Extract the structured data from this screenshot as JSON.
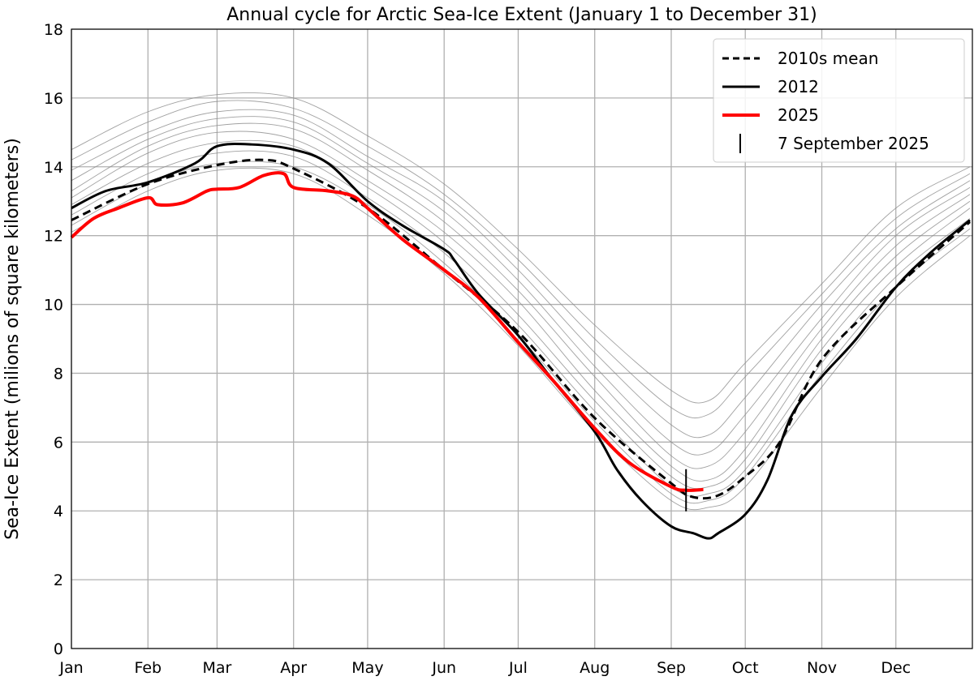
{
  "chart_data": {
    "type": "line",
    "title": "Annual cycle for Arctic Sea-Ice Extent (January 1 to December 31)",
    "xlabel": "",
    "ylabel": "Sea-Ice Extent (milions of square kilometers)",
    "xlim": [
      0,
      365
    ],
    "ylim": [
      0,
      18
    ],
    "yticks": [
      0,
      2,
      4,
      6,
      8,
      10,
      12,
      14,
      16,
      18
    ],
    "xticks": [
      {
        "day": 0,
        "label": "Jan"
      },
      {
        "day": 31,
        "label": "Feb"
      },
      {
        "day": 59,
        "label": "Mar"
      },
      {
        "day": 90,
        "label": "Apr"
      },
      {
        "day": 120,
        "label": "May"
      },
      {
        "day": 151,
        "label": "Jun"
      },
      {
        "day": 181,
        "label": "Jul"
      },
      {
        "day": 212,
        "label": "Aug"
      },
      {
        "day": 243,
        "label": "Sep"
      },
      {
        "day": 273,
        "label": "Oct"
      },
      {
        "day": 304,
        "label": "Nov"
      },
      {
        "day": 334,
        "label": "Dec"
      }
    ],
    "grid": true,
    "legend_position": "top-right",
    "historical_days": [
      0,
      31,
      59,
      90,
      120,
      151,
      181,
      212,
      243,
      258,
      273,
      304,
      334,
      364
    ],
    "historical_series": [
      [
        14.5,
        15.6,
        16.1,
        16.0,
        14.9,
        13.5,
        11.6,
        9.4,
        7.5,
        7.2,
        8.3,
        10.6,
        12.8,
        14.0
      ],
      [
        14.2,
        15.3,
        15.9,
        15.7,
        14.6,
        13.2,
        11.3,
        9.0,
        7.0,
        6.8,
        7.9,
        10.3,
        12.5,
        13.8
      ],
      [
        13.9,
        15.0,
        15.6,
        15.5,
        14.3,
        13.0,
        11.0,
        8.6,
        6.5,
        6.2,
        7.3,
        10.0,
        12.2,
        13.6
      ],
      [
        13.6,
        14.8,
        15.4,
        15.3,
        14.1,
        12.7,
        10.7,
        8.2,
        6.0,
        5.7,
        6.8,
        9.6,
        12.0,
        13.4
      ],
      [
        13.3,
        14.6,
        15.2,
        15.1,
        13.9,
        12.4,
        10.4,
        7.9,
        5.6,
        5.3,
        6.3,
        9.3,
        11.7,
        13.2
      ],
      [
        13.1,
        14.4,
        15.0,
        14.8,
        13.6,
        12.1,
        10.1,
        7.5,
        5.3,
        4.9,
        5.8,
        9.0,
        11.4,
        13.0
      ],
      [
        12.9,
        14.1,
        14.7,
        14.6,
        13.4,
        11.8,
        9.7,
        7.2,
        5.0,
        4.7,
        5.5,
        8.7,
        11.1,
        12.8
      ],
      [
        12.6,
        13.8,
        14.4,
        14.3,
        13.1,
        11.5,
        9.4,
        6.9,
        4.7,
        4.5,
        5.2,
        8.3,
        10.8,
        12.5
      ],
      [
        12.3,
        13.5,
        14.1,
        14.0,
        12.9,
        11.2,
        9.1,
        6.6,
        4.5,
        4.3,
        5.0,
        8.0,
        10.5,
        12.2
      ],
      [
        12.1,
        13.3,
        13.9,
        13.8,
        12.6,
        10.9,
        8.8,
        6.3,
        4.3,
        4.1,
        4.7,
        7.6,
        10.2,
        12.0
      ]
    ],
    "series": [
      {
        "name": "2010s mean",
        "color": "#000000",
        "style": "dashed",
        "x": [
          0,
          31,
          59,
          78,
          90,
          120,
          151,
          181,
          212,
          243,
          252,
          262,
          273,
          287,
          304,
          334,
          364
        ],
        "y": [
          12.45,
          13.5,
          14.05,
          14.2,
          13.95,
          12.8,
          11.0,
          9.2,
          6.7,
          4.8,
          4.4,
          4.45,
          5.0,
          6.0,
          8.4,
          10.5,
          12.4
        ]
      },
      {
        "name": "2012",
        "color": "#000000",
        "style": "solid",
        "x": [
          0,
          14,
          31,
          50,
          59,
          73,
          90,
          104,
          120,
          134,
          151,
          155,
          165,
          181,
          195,
          212,
          221,
          231,
          243,
          252,
          258,
          262,
          273,
          282,
          292,
          304,
          318,
          334,
          348,
          364
        ],
        "y": [
          12.8,
          13.3,
          13.55,
          14.1,
          14.6,
          14.65,
          14.5,
          14.1,
          13.0,
          12.3,
          11.6,
          11.3,
          10.3,
          9.1,
          7.8,
          6.3,
          5.2,
          4.3,
          3.55,
          3.35,
          3.2,
          3.35,
          3.9,
          4.9,
          6.8,
          7.9,
          9.0,
          10.5,
          11.5,
          12.45
        ]
      },
      {
        "name": "2025",
        "color": "#ff0000",
        "style": "solid",
        "x": [
          0,
          9,
          19,
          31,
          35,
          45,
          55,
          59,
          68,
          78,
          86,
          90,
          104,
          114,
          120,
          134,
          151,
          165,
          181,
          195,
          212,
          226,
          243,
          249,
          256
        ],
        "y": [
          11.95,
          12.5,
          12.8,
          13.1,
          12.9,
          12.95,
          13.3,
          13.35,
          13.4,
          13.75,
          13.8,
          13.4,
          13.3,
          13.15,
          12.8,
          11.9,
          11.0,
          10.2,
          8.9,
          7.8,
          6.4,
          5.4,
          4.7,
          4.6,
          4.62
        ]
      }
    ],
    "marker": {
      "name": "7 September 2025",
      "day": 249,
      "value": 4.6
    }
  }
}
